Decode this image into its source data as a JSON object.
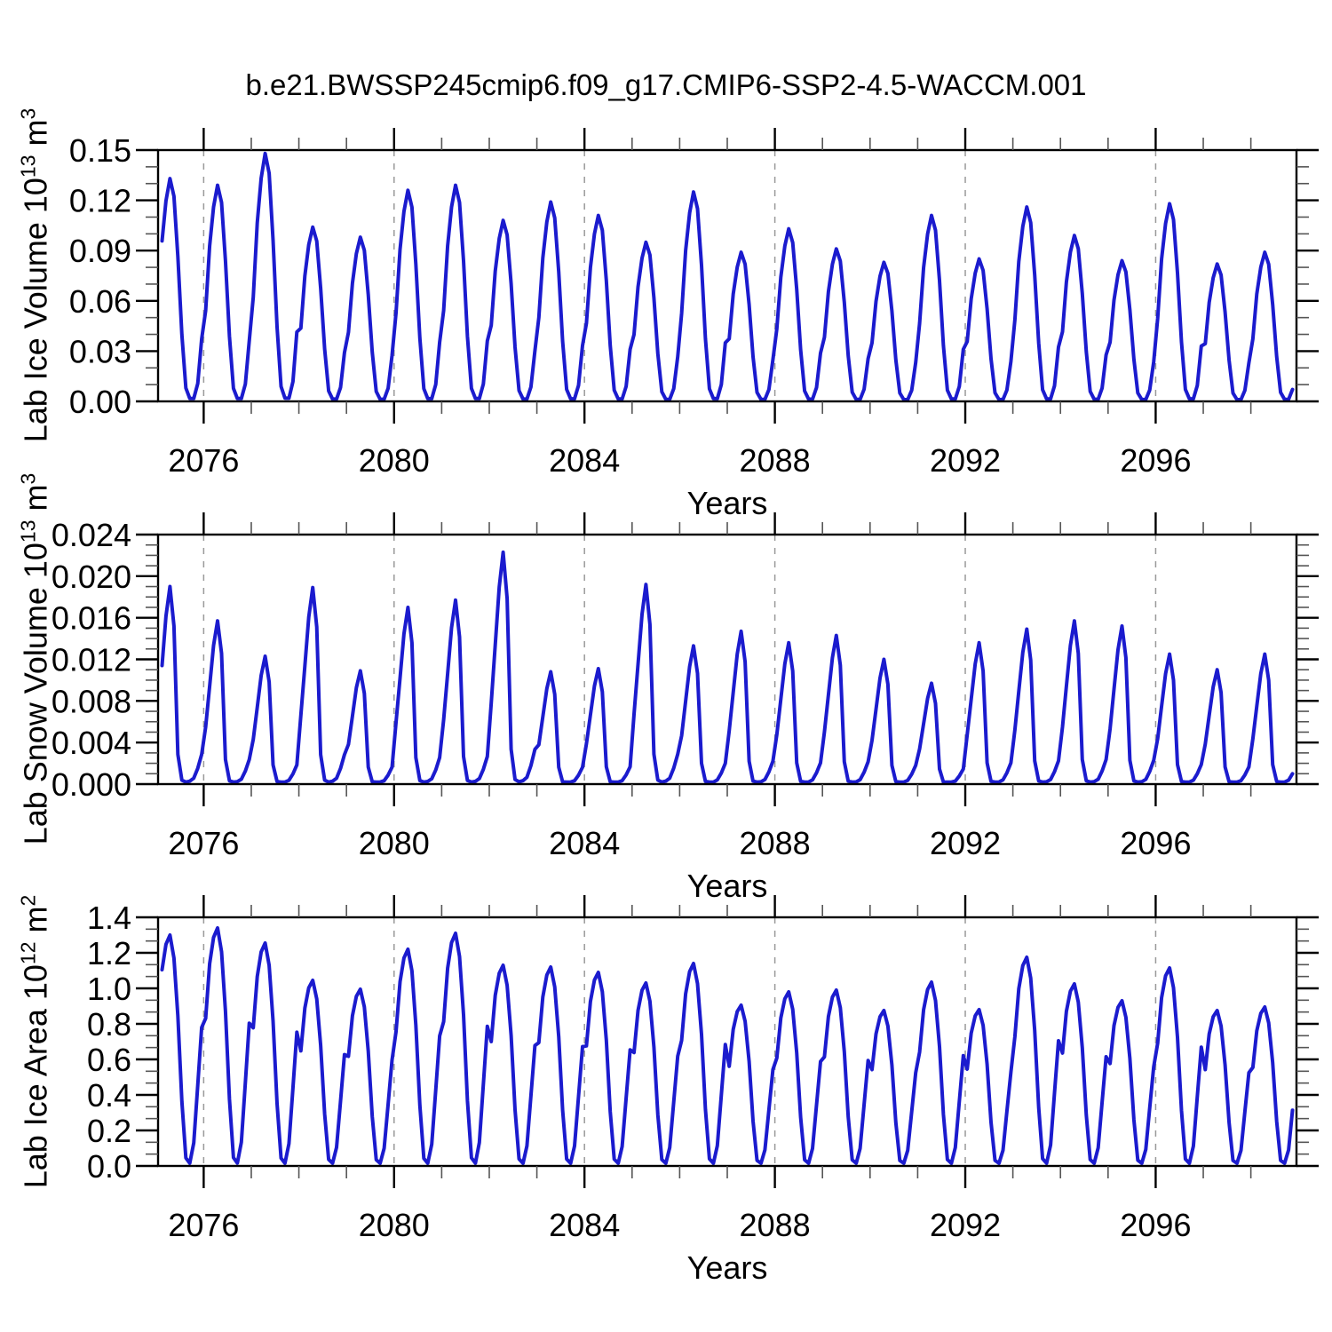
{
  "title": "b.e21.BWSSP245cmip6.f09_g17.CMIP6-SSP2-4.5-WACCM.001",
  "x": {
    "label": "Years",
    "range": [
      2075.0417,
      2098.9583
    ],
    "ticks": [
      2076,
      2080,
      2084,
      2088,
      2092,
      2096
    ],
    "minor_step_years": 1,
    "grid": "dashed-vertical-at-major-ticks"
  },
  "style": {
    "line_color": "#1B1BCE",
    "grid_color": "#999999",
    "axis_color": "#000000",
    "minor_tick_color": "#555555",
    "background": "#ffffff"
  },
  "chart_data": [
    {
      "type": "line",
      "name": "lab-ice-volume",
      "ylabel": "Lab Ice Volume 10^13 m^3",
      "ylabel_parts": {
        "base": "Lab Ice Volume 10",
        "exp": "13",
        "unit": " m",
        "unit_exp": "3"
      },
      "ylim": [
        0,
        0.15
      ],
      "y_tick_labels": [
        "0.00",
        "0.03",
        "0.06",
        "0.09",
        "0.12",
        "0.15"
      ],
      "y_minor_per_major": 2,
      "years_start": 2075,
      "years_end": 2098,
      "annual_peaks": [
        0.133,
        0.129,
        0.148,
        0.104,
        0.098,
        0.126,
        0.129,
        0.108,
        0.119,
        0.111,
        0.095,
        0.125,
        0.089,
        0.103,
        0.091,
        0.083,
        0.111,
        0.085,
        0.116,
        0.099,
        0.084,
        0.118,
        0.082,
        0.089
      ],
      "annual_min_approx": 0.001,
      "monthly_shape": [
        0.42,
        0.72,
        0.9,
        1.0,
        0.92,
        0.65,
        0.3,
        0.06,
        0.013,
        0.013,
        0.08,
        0.28
      ],
      "peak_month": "April-May",
      "min_month": "September-October"
    },
    {
      "type": "line",
      "name": "lab-snow-volume",
      "ylabel": "Lab Snow Volume 10^13 m^3",
      "ylabel_parts": {
        "base": "Lab Snow Volume 10",
        "exp": "13",
        "unit": " m",
        "unit_exp": "3"
      },
      "ylim": [
        0,
        0.024
      ],
      "y_tick_labels": [
        "0.000",
        "0.004",
        "0.008",
        "0.012",
        "0.016",
        "0.020",
        "0.024"
      ],
      "y_minor_per_major": 3,
      "years_start": 2075,
      "years_end": 2098,
      "annual_peaks": [
        0.019,
        0.0157,
        0.0123,
        0.0189,
        0.0109,
        0.017,
        0.0177,
        0.0223,
        0.0108,
        0.0111,
        0.0192,
        0.0133,
        0.0147,
        0.0136,
        0.0143,
        0.012,
        0.0097,
        0.0136,
        0.0149,
        0.0157,
        0.0152,
        0.0125,
        0.011,
        0.0125
      ],
      "annual_min_approx": 0.0002,
      "monthly_shape": [
        0.35,
        0.6,
        0.85,
        1.0,
        0.8,
        0.15,
        0.02,
        0.01,
        0.015,
        0.03,
        0.08,
        0.15
      ],
      "peak_month": "April-May",
      "min_month": "July-September"
    },
    {
      "type": "line",
      "name": "lab-ice-area",
      "ylabel": "Lab Ice Area 10^12 m^2",
      "ylabel_parts": {
        "base": "Lab Ice Area 10",
        "exp": "12",
        "unit": " m",
        "unit_exp": "2"
      },
      "ylim": [
        0,
        1.4
      ],
      "y_tick_labels": [
        "0.0",
        "0.2",
        "0.4",
        "0.6",
        "0.8",
        "1.0",
        "1.2",
        "1.4"
      ],
      "y_minor_per_major": 2,
      "years_start": 2075,
      "years_end": 2098,
      "annual_peaks": [
        1.3,
        1.34,
        1.255,
        1.045,
        0.995,
        1.22,
        1.31,
        1.13,
        1.12,
        1.09,
        1.03,
        1.14,
        0.905,
        0.98,
        0.99,
        0.875,
        1.035,
        0.88,
        1.175,
        1.025,
        0.93,
        1.115,
        0.875,
        0.895
      ],
      "annual_min_approx": 0.015,
      "monthly_shape": [
        0.62,
        0.85,
        0.96,
        1.0,
        0.9,
        0.65,
        0.28,
        0.035,
        0.012,
        0.1,
        0.35,
        0.6
      ],
      "peak_month": "April",
      "min_month": "August-September"
    }
  ]
}
